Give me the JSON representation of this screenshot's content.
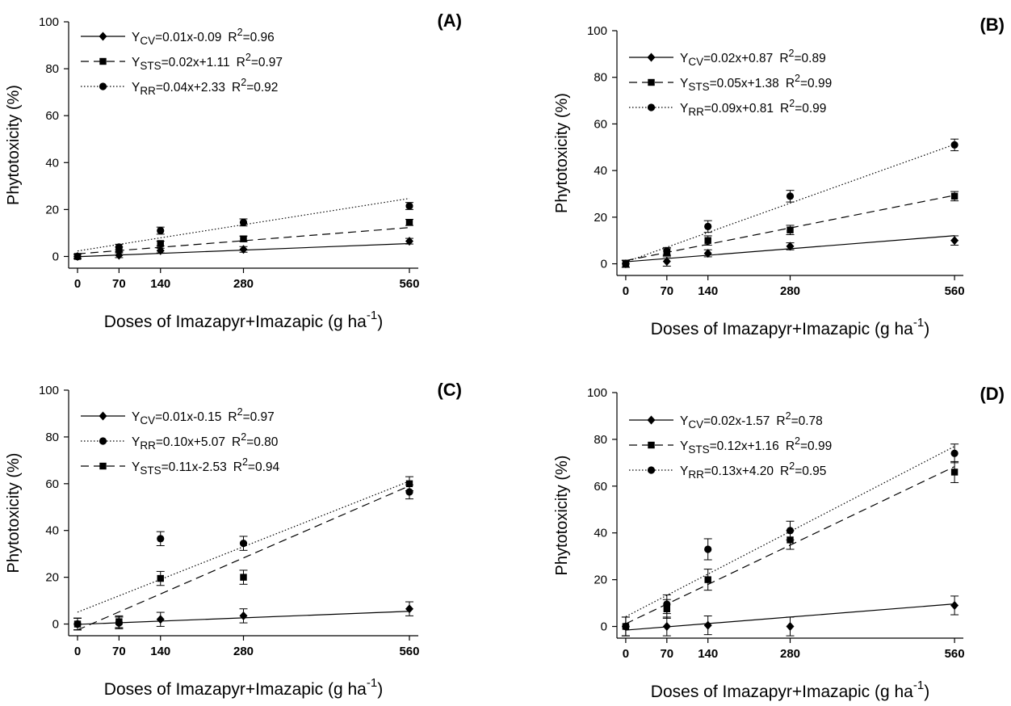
{
  "chart_data": [
    {
      "panel_label": "(A)",
      "type": "scatter",
      "xlabel_main": "Doses of Imazapyr+Imazapic (g ha",
      "xlabel_sup": "-1",
      "xlabel_end": ")",
      "ylabel": "Phytotoxicity (%)",
      "xlim": [
        0,
        560
      ],
      "ylim": [
        0,
        100
      ],
      "xticks": [
        0,
        70,
        140,
        280,
        560
      ],
      "yticks": [
        0,
        20,
        40,
        60,
        80,
        100
      ],
      "legend_position": "top-left",
      "series": [
        {
          "label_sub": "CV",
          "equation": "=0.01x-0.09",
          "r2": "=0.96",
          "marker": "diamond",
          "line_style": "solid",
          "fit": [
            0.01,
            -0.09
          ],
          "x": [
            0,
            70,
            140,
            280,
            560
          ],
          "y": [
            0,
            0.5,
            2.5,
            3,
            6.5
          ],
          "err": [
            1,
            1,
            1,
            1.2,
            1.2
          ]
        },
        {
          "label_sub": "STS",
          "equation": "=0.02x+1.11",
          "r2": "=0.97",
          "marker": "square",
          "line_style": "dashed",
          "fit": [
            0.02,
            1.11
          ],
          "x": [
            0,
            70,
            140,
            280,
            560
          ],
          "y": [
            0,
            3,
            5.5,
            7.5,
            14.5
          ],
          "err": [
            1,
            1,
            1,
            1.2,
            1.3
          ]
        },
        {
          "label_sub": "RR",
          "equation": "=0.04x+2.33",
          "r2": "=0.92",
          "marker": "circle",
          "line_style": "dotted",
          "fit": [
            0.04,
            2.33
          ],
          "x": [
            0,
            70,
            140,
            280,
            560
          ],
          "y": [
            0,
            4,
            11,
            14.5,
            21.5
          ],
          "err": [
            1,
            1.2,
            1.5,
            1.5,
            1.5
          ]
        }
      ]
    },
    {
      "panel_label": "(B)",
      "type": "scatter",
      "xlabel_main": "Doses of Imazapyr+Imazapic (g ha",
      "xlabel_sup": "-1",
      "xlabel_end": ")",
      "ylabel": "Phytotoxicity (%)",
      "xlim": [
        0,
        560
      ],
      "ylim": [
        0,
        100
      ],
      "xticks": [
        0,
        70,
        140,
        280,
        560
      ],
      "yticks": [
        0,
        20,
        40,
        60,
        80,
        100
      ],
      "legend_position": "top-left",
      "series": [
        {
          "label_sub": "CV",
          "equation": "=0.02x+0.87",
          "r2": "=0.89",
          "marker": "diamond",
          "line_style": "solid",
          "fit": [
            0.02,
            0.87
          ],
          "x": [
            0,
            70,
            140,
            280,
            560
          ],
          "y": [
            0,
            1,
            4.5,
            7.5,
            10
          ],
          "err": [
            1.5,
            2,
            1.5,
            1.5,
            2
          ]
        },
        {
          "label_sub": "STS",
          "equation": "=0.05x+1.38",
          "r2": "=0.99",
          "marker": "square",
          "line_style": "dashed",
          "fit": [
            0.05,
            1.38
          ],
          "x": [
            0,
            70,
            140,
            280,
            560
          ],
          "y": [
            0,
            5,
            10,
            14.5,
            29
          ],
          "err": [
            1.5,
            1.5,
            2,
            2,
            2
          ]
        },
        {
          "label_sub": "RR",
          "equation": "=0.09x+0.81",
          "r2": "=0.99",
          "marker": "circle",
          "line_style": "dotted",
          "fit": [
            0.09,
            0.81
          ],
          "x": [
            0,
            70,
            140,
            280,
            560
          ],
          "y": [
            0,
            5.5,
            16,
            29,
            51
          ],
          "err": [
            1.5,
            1.5,
            2.5,
            2.5,
            2.5
          ]
        }
      ]
    },
    {
      "panel_label": "(C)",
      "type": "scatter",
      "xlabel_main": "Doses of Imazapyr+Imazapic (g ha",
      "xlabel_sup": "-1",
      "xlabel_end": ")",
      "ylabel": "Phytotoxicity (%)",
      "xlim": [
        0,
        560
      ],
      "ylim": [
        0,
        100
      ],
      "xticks": [
        0,
        70,
        140,
        280,
        560
      ],
      "yticks": [
        0,
        20,
        40,
        60,
        80,
        100
      ],
      "legend_position": "top-left",
      "series": [
        {
          "label_sub": "CV",
          "equation": "=0.01x-0.15",
          "r2": "=0.97",
          "marker": "diamond",
          "line_style": "solid",
          "fit": [
            0.01,
            -0.15
          ],
          "x": [
            0,
            70,
            140,
            280,
            560
          ],
          "y": [
            0,
            0.5,
            2,
            3.5,
            6.5
          ],
          "err": [
            2.5,
            2.5,
            3,
            3,
            3
          ]
        },
        {
          "label_sub": "RR",
          "equation": "=0.10x+5.07",
          "r2": "=0.80",
          "marker": "circle",
          "line_style": "dotted",
          "fit": [
            0.1,
            5.07
          ],
          "x": [
            0,
            70,
            140,
            280,
            560
          ],
          "y": [
            0,
            0.5,
            36.5,
            34.5,
            56.5
          ],
          "err": [
            2.5,
            2.5,
            3,
            3,
            3
          ]
        },
        {
          "label_sub": "STS",
          "equation": "=0.11x-2.53",
          "r2": "=0.94",
          "marker": "square",
          "line_style": "dashed",
          "fit": [
            0.11,
            -2.53
          ],
          "x": [
            0,
            70,
            140,
            280,
            560
          ],
          "y": [
            0,
            1,
            19.5,
            20,
            60
          ],
          "err": [
            2.5,
            2.5,
            3,
            3,
            3
          ]
        }
      ]
    },
    {
      "panel_label": "(D)",
      "type": "scatter",
      "xlabel_main": "Doses of Imazapyr+Imazapic (g ha",
      "xlabel_sup": "-1",
      "xlabel_end": ")",
      "ylabel": "Phytotoxicity (%)",
      "xlim": [
        0,
        560
      ],
      "ylim": [
        0,
        100
      ],
      "xticks": [
        0,
        70,
        140,
        280,
        560
      ],
      "yticks": [
        0,
        20,
        40,
        60,
        80,
        100
      ],
      "legend_position": "top-left",
      "series": [
        {
          "label_sub": "CV",
          "equation": "=0.02x-1.57",
          "r2": "=0.78",
          "marker": "diamond",
          "line_style": "solid",
          "fit": [
            0.02,
            -1.57
          ],
          "x": [
            0,
            70,
            140,
            280,
            560
          ],
          "y": [
            0,
            0,
            0.5,
            0,
            9
          ],
          "err": [
            4,
            4,
            4,
            4,
            4
          ]
        },
        {
          "label_sub": "STS",
          "equation": "=0.12x+1.16",
          "r2": "=0.99",
          "marker": "square",
          "line_style": "dashed",
          "fit": [
            0.12,
            1.16
          ],
          "x": [
            0,
            70,
            140,
            280,
            560
          ],
          "y": [
            0,
            7.5,
            20,
            37,
            66
          ],
          "err": [
            4,
            4,
            4.5,
            4,
            4.5
          ]
        },
        {
          "label_sub": "RR",
          "equation": "=0.13x+4.20",
          "r2": "=0.95",
          "marker": "circle",
          "line_style": "dotted",
          "fit": [
            0.13,
            4.2
          ],
          "x": [
            0,
            70,
            140,
            280,
            560
          ],
          "y": [
            0,
            9.5,
            33,
            41,
            74
          ],
          "err": [
            4,
            4,
            4.5,
            4,
            4
          ]
        }
      ]
    }
  ]
}
